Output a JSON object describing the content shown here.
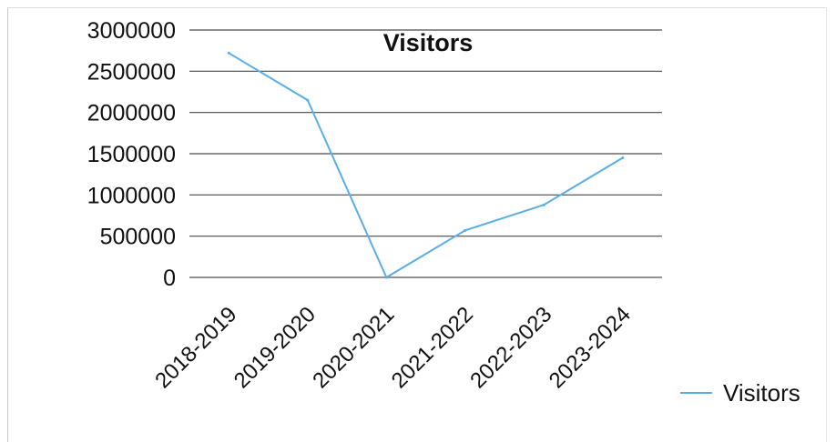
{
  "chart_data": {
    "type": "line",
    "title": "Visitors",
    "categories": [
      "2018-2019",
      "2019-2020",
      "2020-2021",
      "2021-2022",
      "2022-2023",
      "2023-2024"
    ],
    "series": [
      {
        "name": "Visitors",
        "values": [
          2720000,
          2150000,
          0,
          570000,
          880000,
          1450000
        ],
        "color": "#5aaee6"
      }
    ],
    "ylim": [
      0,
      3000000
    ],
    "yticks": [
      "0",
      "500000",
      "1000000",
      "1500000",
      "2000000",
      "2500000",
      "3000000"
    ],
    "grid": true,
    "legend": "bottom-right"
  }
}
